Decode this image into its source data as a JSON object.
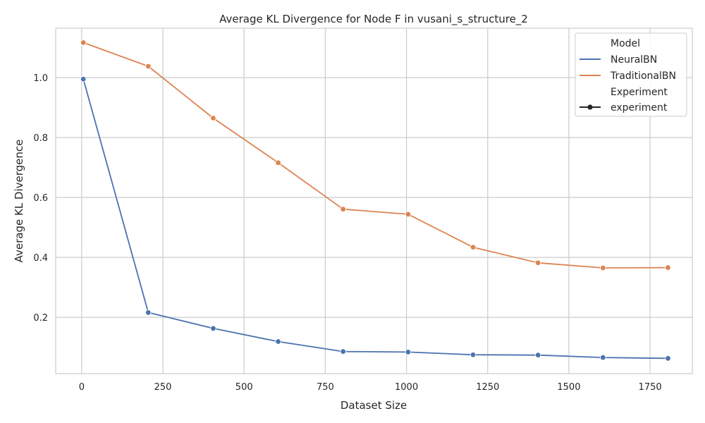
{
  "chart_data": {
    "type": "line",
    "title": "Average KL Divergence for Node F in vusani_s_structure_2",
    "xlabel": "Dataset Size",
    "ylabel": "Average KL Divergence",
    "xlim": [
      -80,
      1880
    ],
    "ylim": [
      0.012,
      1.165
    ],
    "x_ticks": [
      0,
      250,
      500,
      750,
      1000,
      1250,
      1500,
      1750
    ],
    "y_ticks": [
      0.2,
      0.4,
      0.6,
      0.8,
      1.0
    ],
    "y_tick_labels": [
      "0.2",
      "0.4",
      "0.6",
      "0.8",
      "1.0"
    ],
    "grid": true,
    "legend_position": "top-right",
    "x": [
      5,
      205,
      405,
      605,
      805,
      1005,
      1205,
      1405,
      1605,
      1805
    ],
    "series": [
      {
        "name": "NeuralBN",
        "color": "#4c72b0",
        "values": [
          0.995,
          0.216,
          0.163,
          0.119,
          0.086,
          0.084,
          0.075,
          0.074,
          0.066,
          0.063
        ]
      },
      {
        "name": "TraditionalBN",
        "color": "#dd8452",
        "values": [
          1.117,
          1.038,
          0.865,
          0.716,
          0.561,
          0.544,
          0.434,
          0.382,
          0.365,
          0.366
        ]
      }
    ],
    "legend": {
      "model_title": "Model",
      "experiment_title": "Experiment",
      "experiment_entry": "experiment"
    }
  }
}
